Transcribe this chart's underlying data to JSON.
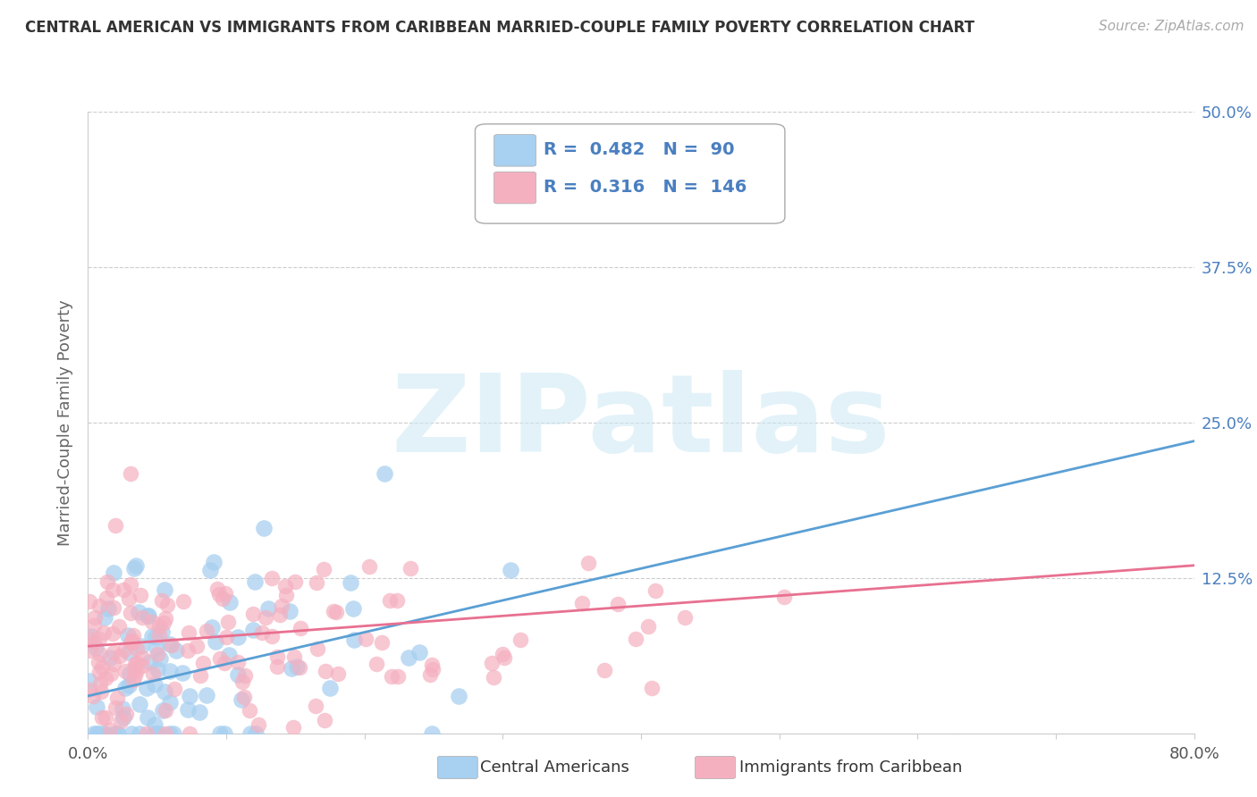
{
  "title": "CENTRAL AMERICAN VS IMMIGRANTS FROM CARIBBEAN MARRIED-COUPLE FAMILY POVERTY CORRELATION CHART",
  "source": "Source: ZipAtlas.com",
  "ylabel": "Married-Couple Family Poverty",
  "xlim": [
    0,
    0.8
  ],
  "ylim": [
    0,
    0.5
  ],
  "xticks": [
    0.0,
    0.1,
    0.2,
    0.3,
    0.4,
    0.5,
    0.6,
    0.7,
    0.8
  ],
  "xticklabels": [
    "0.0%",
    "",
    "",
    "",
    "",
    "",
    "",
    "",
    "80.0%"
  ],
  "yticks": [
    0.0,
    0.125,
    0.25,
    0.375,
    0.5
  ],
  "yticklabels_left": [
    "",
    "",
    "",
    "",
    ""
  ],
  "yticklabels_right": [
    "",
    "12.5%",
    "25.0%",
    "37.5%",
    "50.0%"
  ],
  "blue_R": 0.482,
  "blue_N": 90,
  "pink_R": 0.316,
  "pink_N": 146,
  "blue_color": "#a8d0f0",
  "pink_color": "#f5b0c0",
  "blue_line_color": "#5a9fd4",
  "pink_line_color": "#e87090",
  "legend_label_blue": "Central Americans",
  "legend_label_pink": "Immigrants from Caribbean",
  "background_color": "#ffffff",
  "grid_color": "#cccccc",
  "title_color": "#333333",
  "source_color": "#aaaaaa",
  "stat_color": "#4a7fc0",
  "blue_line_start_y": 0.03,
  "blue_line_end_y": 0.235,
  "pink_line_start_y": 0.07,
  "pink_line_end_y": 0.135,
  "watermark": "ZIPatlas"
}
